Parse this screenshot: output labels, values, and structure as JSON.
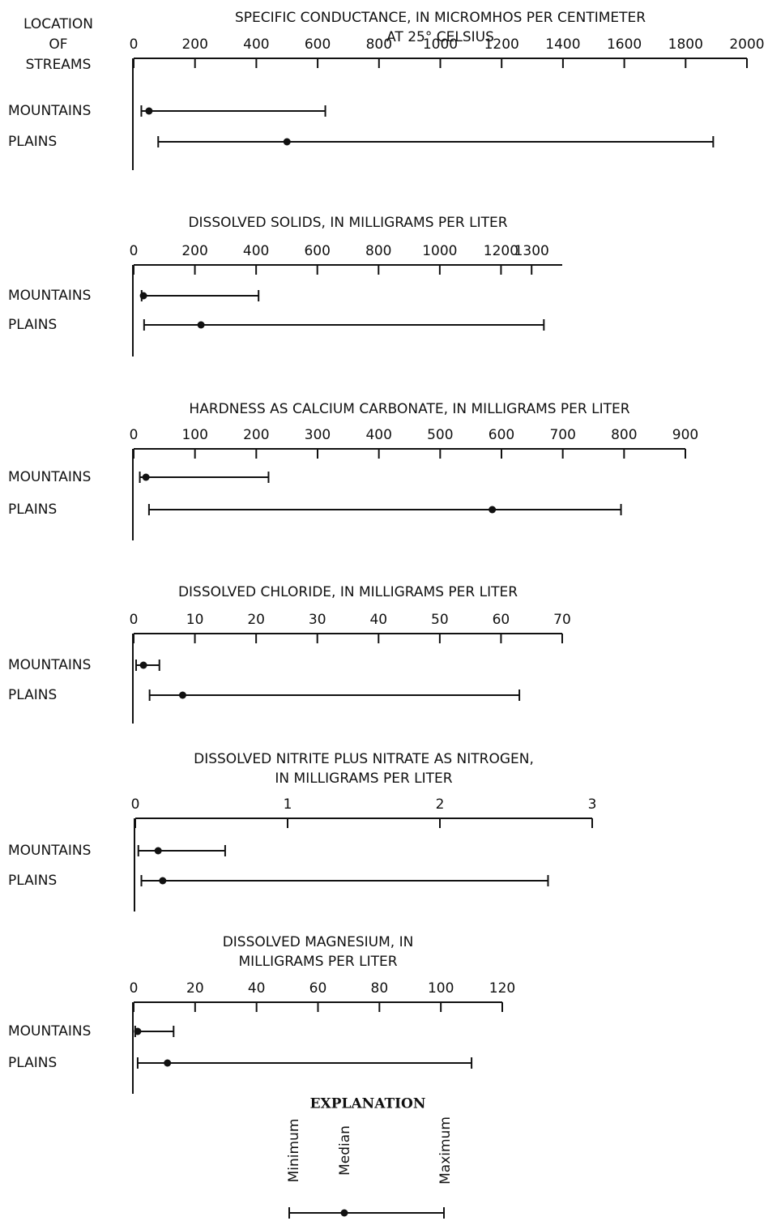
{
  "header": [
    "LOCATION",
    "OF",
    "STREAMS"
  ],
  "chart_data": [
    {
      "type": "range",
      "title": [
        "SPECIFIC CONDUCTANCE, IN MICROMHOS PER CENTIMETER",
        "AT 25° CELSIUS"
      ],
      "categories": [
        "MOUNTAINS",
        "PLAINS"
      ],
      "min": [
        25,
        80
      ],
      "median": [
        50,
        500
      ],
      "max": [
        625,
        1890
      ],
      "xlim": [
        0,
        2000
      ],
      "xticks": [
        0,
        200,
        400,
        600,
        800,
        1000,
        1200,
        1400,
        1600,
        1800,
        2000
      ]
    },
    {
      "type": "range",
      "title": [
        "DISSOLVED SOLIDS, IN MILLIGRAMS PER LITER"
      ],
      "categories": [
        "MOUNTAINS",
        "PLAINS"
      ],
      "min": [
        26,
        34
      ],
      "median": [
        32,
        220
      ],
      "max": [
        408,
        1340
      ],
      "xlim": [
        0,
        1400
      ],
      "xticks": [
        0,
        200,
        400,
        600,
        800,
        1000,
        1200,
        1300
      ]
    },
    {
      "type": "range",
      "title": [
        "HARDNESS AS CALCIUM CARBONATE, IN MILLIGRAMS PER LITER"
      ],
      "categories": [
        "MOUNTAINS",
        "PLAINS"
      ],
      "min": [
        10,
        25
      ],
      "median": [
        20,
        585
      ],
      "max": [
        220,
        795
      ],
      "xlim": [
        0,
        900
      ],
      "xticks": [
        0,
        100,
        200,
        300,
        400,
        500,
        600,
        700,
        800,
        900
      ]
    },
    {
      "type": "range",
      "title": [
        "DISSOLVED CHLORIDE, IN MILLIGRAMS PER LITER"
      ],
      "categories": [
        "MOUNTAINS",
        "PLAINS"
      ],
      "min": [
        0.4,
        2.6
      ],
      "median": [
        1.6,
        8
      ],
      "max": [
        4.2,
        63
      ],
      "xlim": [
        0,
        70
      ],
      "xticks": [
        0,
        10,
        20,
        30,
        40,
        50,
        60,
        70
      ]
    },
    {
      "type": "range",
      "title": [
        "DISSOLVED NITRITE PLUS NITRATE AS NITROGEN,",
        "IN MILLIGRAMS PER LITER"
      ],
      "categories": [
        "MOUNTAINS",
        "PLAINS"
      ],
      "min": [
        0.02,
        0.04
      ],
      "median": [
        0.15,
        0.18
      ],
      "max": [
        0.59,
        2.71
      ],
      "xlim": [
        0,
        3
      ],
      "xticks": [
        0,
        1,
        2,
        3
      ]
    },
    {
      "type": "range",
      "title": [
        "DISSOLVED MAGNESIUM, IN",
        "MILLIGRAMS PER LITER"
      ],
      "categories": [
        "MOUNTAINS",
        "PLAINS"
      ],
      "min": [
        0.5,
        1.3
      ],
      "median": [
        1.3,
        11
      ],
      "max": [
        13,
        110
      ],
      "xlim": [
        0,
        120
      ],
      "xticks": [
        0,
        20,
        40,
        60,
        80,
        100,
        120
      ]
    }
  ],
  "explanation": {
    "title": "EXPLANATION",
    "labels": [
      "Minimum",
      "Median",
      "Maximum"
    ]
  }
}
